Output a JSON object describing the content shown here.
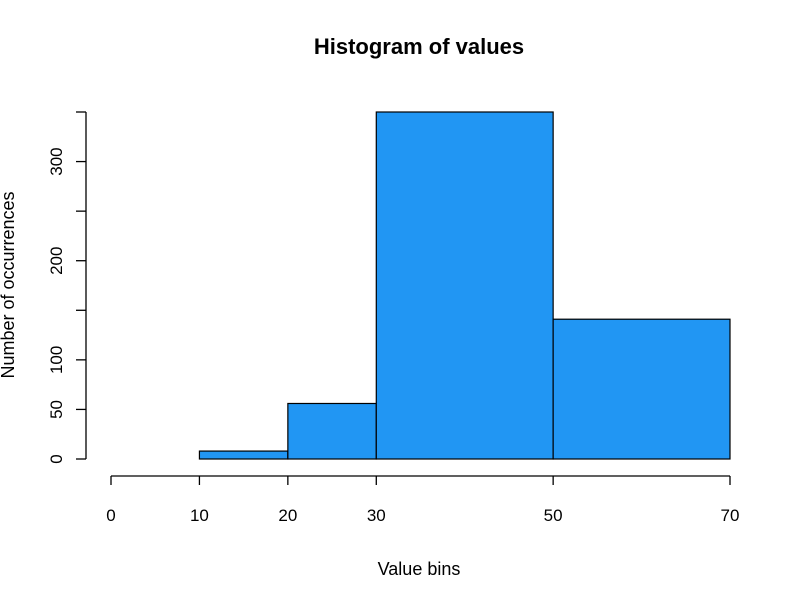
{
  "chart_data": {
    "type": "bar",
    "title": "Histogram of values",
    "xlabel": "Value bins",
    "ylabel": "Number of occurrences",
    "bins": [
      {
        "start": 0,
        "end": 10,
        "value": 0
      },
      {
        "start": 10,
        "end": 20,
        "value": 8
      },
      {
        "start": 20,
        "end": 30,
        "value": 56
      },
      {
        "start": 30,
        "end": 50,
        "value": 350
      },
      {
        "start": 50,
        "end": 70,
        "value": 141
      }
    ],
    "x_ticks": [
      0,
      10,
      20,
      30,
      50,
      70
    ],
    "y_ticks": [
      0,
      50,
      100,
      200,
      300
    ],
    "y_minor_ticks": [
      150,
      250,
      350
    ],
    "xlim": [
      0,
      70
    ],
    "ylim": [
      0,
      350
    ],
    "bar_color": "#2196F3",
    "grid": false,
    "legend": false
  }
}
